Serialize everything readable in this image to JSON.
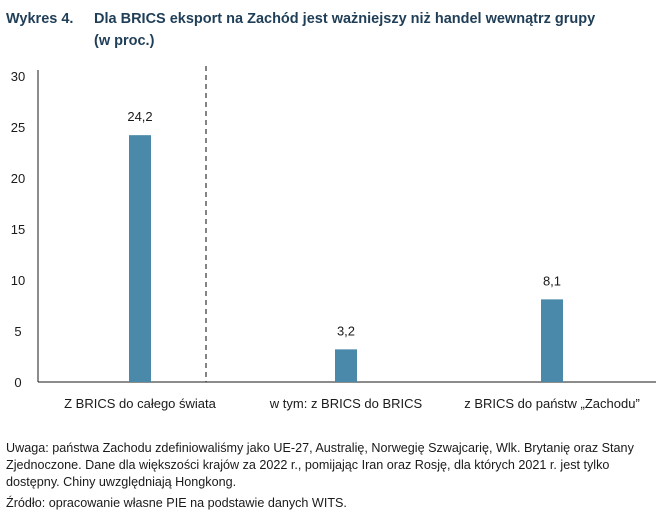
{
  "header": {
    "label": "Wykres 4.",
    "title_line1": "Dla BRICS eksport na Zachód jest ważniejszy niż handel wewnątrz grupy",
    "title_line2": "(w proc.)"
  },
  "chart_data": {
    "type": "bar",
    "categories": [
      "Z BRICS do całego świata",
      "w tym: z BRICS do BRICS",
      "z BRICS do państw „Zachodu”"
    ],
    "values": [
      24.2,
      3.2,
      8.1
    ],
    "value_labels": [
      "24,2",
      "3,2",
      "8,1"
    ],
    "ylim": [
      0,
      30
    ],
    "yticks": [
      0,
      5,
      10,
      15,
      20,
      25,
      30
    ],
    "bar_color": "#4a89aa",
    "divider_after_category": 0,
    "grid": false
  },
  "notes": {
    "remark": "Uwaga: państwa Zachodu zdefiniowaliśmy jako UE-27, Australię, Norwegię Szwajcarię, Wlk. Brytanię oraz Stany Zjednoczone. Dane dla większości krajów za 2022 r., pomijając Iran oraz Rosję, dla których 2021 r. jest tylko dostępny. Chiny uwzględniają Hongkong.",
    "source": "Źródło: opracowanie własne PIE na podstawie danych WITS."
  }
}
